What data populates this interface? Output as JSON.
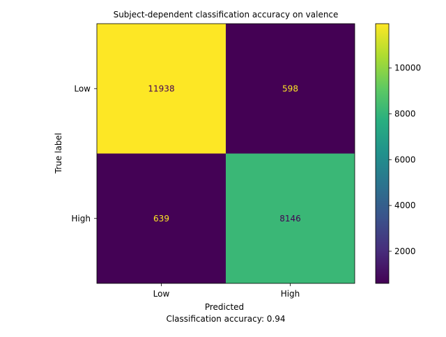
{
  "chart_data": {
    "type": "heatmap",
    "title": "Subject-dependent classification accuracy on valence",
    "xlabel": "Predicted",
    "ylabel": "True label",
    "x_categories": [
      "Low",
      "High"
    ],
    "y_categories": [
      "Low",
      "High"
    ],
    "values": [
      [
        11938,
        598
      ],
      [
        639,
        8146
      ]
    ],
    "colormap": "viridis",
    "colorbar": {
      "min": 598,
      "max": 11938,
      "ticks": [
        2000,
        4000,
        6000,
        8000,
        10000
      ]
    },
    "annotation_colors": {
      "on_dark": "#fde725",
      "on_light": "#440154"
    },
    "footer": "Classification accuracy: 0.94"
  }
}
